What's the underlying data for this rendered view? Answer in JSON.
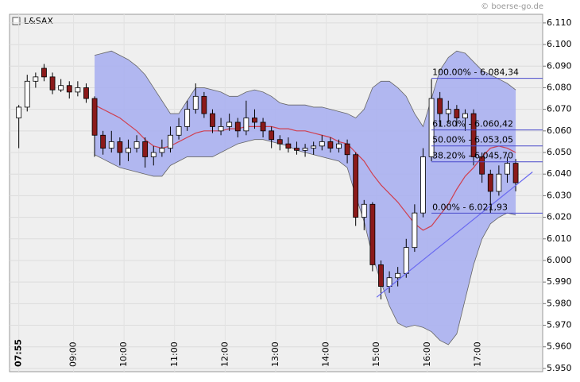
{
  "chart_data": {
    "type": "candlestick",
    "title": "L&SAX",
    "source": "© boerse-go.de",
    "x": [
      475,
      485,
      495,
      505,
      515,
      525,
      535,
      545,
      555,
      565,
      575,
      585,
      595,
      605,
      615,
      625,
      635,
      645,
      655,
      665,
      675,
      685,
      695,
      705,
      715,
      725,
      735,
      745,
      755,
      765,
      775,
      785,
      795,
      805,
      815,
      825,
      835,
      845,
      855,
      865,
      875,
      885,
      895,
      905,
      915,
      925,
      935,
      945,
      955,
      965,
      975,
      985,
      995,
      1005,
      1015,
      1025,
      1035,
      1045,
      1055,
      1065
    ],
    "open": [
      6.066,
      6.071,
      6.083,
      6.089,
      6.085,
      6.079,
      6.081,
      6.078,
      6.08,
      6.075,
      6.058,
      6.052,
      6.055,
      6.05,
      6.052,
      6.055,
      6.048,
      6.05,
      6.052,
      6.058,
      6.062,
      6.07,
      6.076,
      6.068,
      6.06,
      6.062,
      6.064,
      6.06,
      6.066,
      6.064,
      6.06,
      6.056,
      6.054,
      6.052,
      6.051,
      6.052,
      6.053,
      6.055,
      6.052,
      6.054,
      6.049,
      6.02,
      6.026,
      5.998,
      5.988,
      5.992,
      5.994,
      6.006,
      6.022,
      6.048,
      6.075,
      6.068,
      6.07,
      6.066,
      6.068,
      6.048,
      6.04,
      6.032,
      6.04,
      6.045
    ],
    "high": [
      6.072,
      6.086,
      6.087,
      6.091,
      6.087,
      6.084,
      6.083,
      6.083,
      6.082,
      6.076,
      6.06,
      6.06,
      6.057,
      6.056,
      6.058,
      6.057,
      6.053,
      6.056,
      6.062,
      6.066,
      6.074,
      6.082,
      6.078,
      6.07,
      6.066,
      6.068,
      6.066,
      6.074,
      6.07,
      6.066,
      6.062,
      6.058,
      6.057,
      6.055,
      6.054,
      6.055,
      6.058,
      6.057,
      6.056,
      6.056,
      6.05,
      6.028,
      6.027,
      6.0,
      5.995,
      5.997,
      6.01,
      6.026,
      6.052,
      6.084,
      6.078,
      6.074,
      6.072,
      6.07,
      6.07,
      6.05,
      6.042,
      6.044,
      6.048,
      6.047
    ],
    "low": [
      6.052,
      6.069,
      6.08,
      6.083,
      6.077,
      6.078,
      6.075,
      6.076,
      6.073,
      6.048,
      6.049,
      6.05,
      6.044,
      6.046,
      6.05,
      6.043,
      6.044,
      6.048,
      6.05,
      6.056,
      6.06,
      6.068,
      6.066,
      6.059,
      6.058,
      6.06,
      6.057,
      6.058,
      6.061,
      6.057,
      6.052,
      6.051,
      6.05,
      6.049,
      6.048,
      6.049,
      6.051,
      6.05,
      6.05,
      6.045,
      6.016,
      6.014,
      5.995,
      5.982,
      5.985,
      5.988,
      5.992,
      6.004,
      6.02,
      6.046,
      6.062,
      6.064,
      6.062,
      6.06,
      6.044,
      6.036,
      6.022,
      6.03,
      6.036,
      6.032
    ],
    "close": [
      6.071,
      6.083,
      6.085,
      6.085,
      6.079,
      6.081,
      6.078,
      6.08,
      6.075,
      6.058,
      6.052,
      6.055,
      6.05,
      6.052,
      6.055,
      6.048,
      6.05,
      6.052,
      6.058,
      6.062,
      6.07,
      6.076,
      6.068,
      6.062,
      6.062,
      6.064,
      6.06,
      6.066,
      6.064,
      6.06,
      6.056,
      6.054,
      6.052,
      6.051,
      6.052,
      6.053,
      6.055,
      6.052,
      6.054,
      6.049,
      6.02,
      6.026,
      5.998,
      5.988,
      5.992,
      5.994,
      6.006,
      6.022,
      6.048,
      6.075,
      6.068,
      6.07,
      6.066,
      6.068,
      6.048,
      6.04,
      6.032,
      6.04,
      6.045,
      6.036
    ],
    "up_color": "#ffffff",
    "down_color": "#8b1a1a",
    "bands": {
      "color": "#aab0f0",
      "middle_color": "#d04050",
      "upper": [
        null,
        null,
        null,
        null,
        null,
        null,
        null,
        null,
        null,
        6.095,
        6.096,
        6.097,
        6.095,
        6.093,
        6.09,
        6.086,
        6.08,
        6.074,
        6.068,
        6.068,
        6.074,
        6.08,
        6.08,
        6.079,
        6.078,
        6.076,
        6.076,
        6.078,
        6.079,
        6.078,
        6.076,
        6.073,
        6.072,
        6.072,
        6.072,
        6.071,
        6.071,
        6.07,
        6.069,
        6.068,
        6.066,
        6.07,
        6.08,
        6.083,
        6.083,
        6.08,
        6.076,
        6.068,
        6.062,
        6.075,
        6.088,
        6.094,
        6.097,
        6.096,
        6.092,
        6.088,
        6.086,
        6.084,
        6.082,
        6.079
      ],
      "middle": [
        null,
        null,
        null,
        null,
        null,
        null,
        null,
        null,
        null,
        6.072,
        6.07,
        6.068,
        6.066,
        6.063,
        6.06,
        6.056,
        6.053,
        6.052,
        6.053,
        6.055,
        6.057,
        6.059,
        6.06,
        6.06,
        6.06,
        6.061,
        6.061,
        6.062,
        6.062,
        6.062,
        6.062,
        6.061,
        6.061,
        6.06,
        6.06,
        6.059,
        6.058,
        6.057,
        6.055,
        6.054,
        6.05,
        6.046,
        6.04,
        6.035,
        6.031,
        6.027,
        6.022,
        6.017,
        6.014,
        6.016,
        6.021,
        6.026,
        6.033,
        6.039,
        6.043,
        6.048,
        6.052,
        6.053,
        6.052,
        6.05
      ],
      "lower": [
        null,
        null,
        null,
        null,
        null,
        null,
        null,
        null,
        null,
        6.049,
        6.047,
        6.045,
        6.043,
        6.042,
        6.041,
        6.04,
        6.039,
        6.039,
        6.044,
        6.046,
        6.048,
        6.048,
        6.048,
        6.048,
        6.05,
        6.052,
        6.054,
        6.055,
        6.056,
        6.056,
        6.055,
        6.054,
        6.053,
        6.051,
        6.05,
        6.049,
        6.048,
        6.047,
        6.046,
        6.043,
        6.03,
        6.018,
        6.002,
        5.99,
        5.979,
        5.971,
        5.969,
        5.97,
        5.969,
        5.967,
        5.963,
        5.961,
        5.966,
        5.982,
        5.998,
        6.01,
        6.017,
        6.02,
        6.022,
        6.021
      ]
    },
    "fibonacci": {
      "color": "#4a4acc",
      "x_from": 965,
      "levels": [
        6.08434,
        6.06042,
        6.05305,
        6.0457,
        6.02193
      ],
      "labels": [
        "100.00% - 6.084,34",
        "61.80% - 6.060,42",
        "50.00% - 6.053,05",
        "38.20% - 6.045,70",
        "0.00% - 6.021,93"
      ]
    },
    "trendline": {
      "color": "#6a6af0",
      "x": [
        900,
        1085
      ],
      "y": [
        5.983,
        6.041
      ]
    },
    "xlim": [
      464,
      1097
    ],
    "ylim": [
      5.9485,
      6.114
    ],
    "xticks": [
      {
        "value": 475,
        "label": "07:55"
      },
      {
        "value": 540,
        "label": "09:00"
      },
      {
        "value": 600,
        "label": "10:00"
      },
      {
        "value": 660,
        "label": "11:00"
      },
      {
        "value": 720,
        "label": "12:00"
      },
      {
        "value": 780,
        "label": "13:00"
      },
      {
        "value": 840,
        "label": "14:00"
      },
      {
        "value": 900,
        "label": "15:00"
      },
      {
        "value": 960,
        "label": "16:00"
      },
      {
        "value": 1020,
        "label": "17:00"
      }
    ],
    "yticks": [
      {
        "value": 5.95,
        "label": "5.950"
      },
      {
        "value": 5.96,
        "label": "5.960"
      },
      {
        "value": 5.97,
        "label": "5.970"
      },
      {
        "value": 5.98,
        "label": "5.980"
      },
      {
        "value": 5.99,
        "label": "5.990"
      },
      {
        "value": 6.0,
        "label": "6.000"
      },
      {
        "value": 6.01,
        "label": "6.010"
      },
      {
        "value": 6.02,
        "label": "6.020"
      },
      {
        "value": 6.03,
        "label": "6.030"
      },
      {
        "value": 6.04,
        "label": "6.040"
      },
      {
        "value": 6.05,
        "label": "6.050"
      },
      {
        "value": 6.06,
        "label": "6.060"
      },
      {
        "value": 6.07,
        "label": "6.070"
      },
      {
        "value": 6.08,
        "label": "6.080"
      },
      {
        "value": 6.09,
        "label": "6.090"
      },
      {
        "value": 6.1,
        "label": "6.100"
      },
      {
        "value": 6.11,
        "label": "6.110"
      }
    ],
    "grid": true
  }
}
